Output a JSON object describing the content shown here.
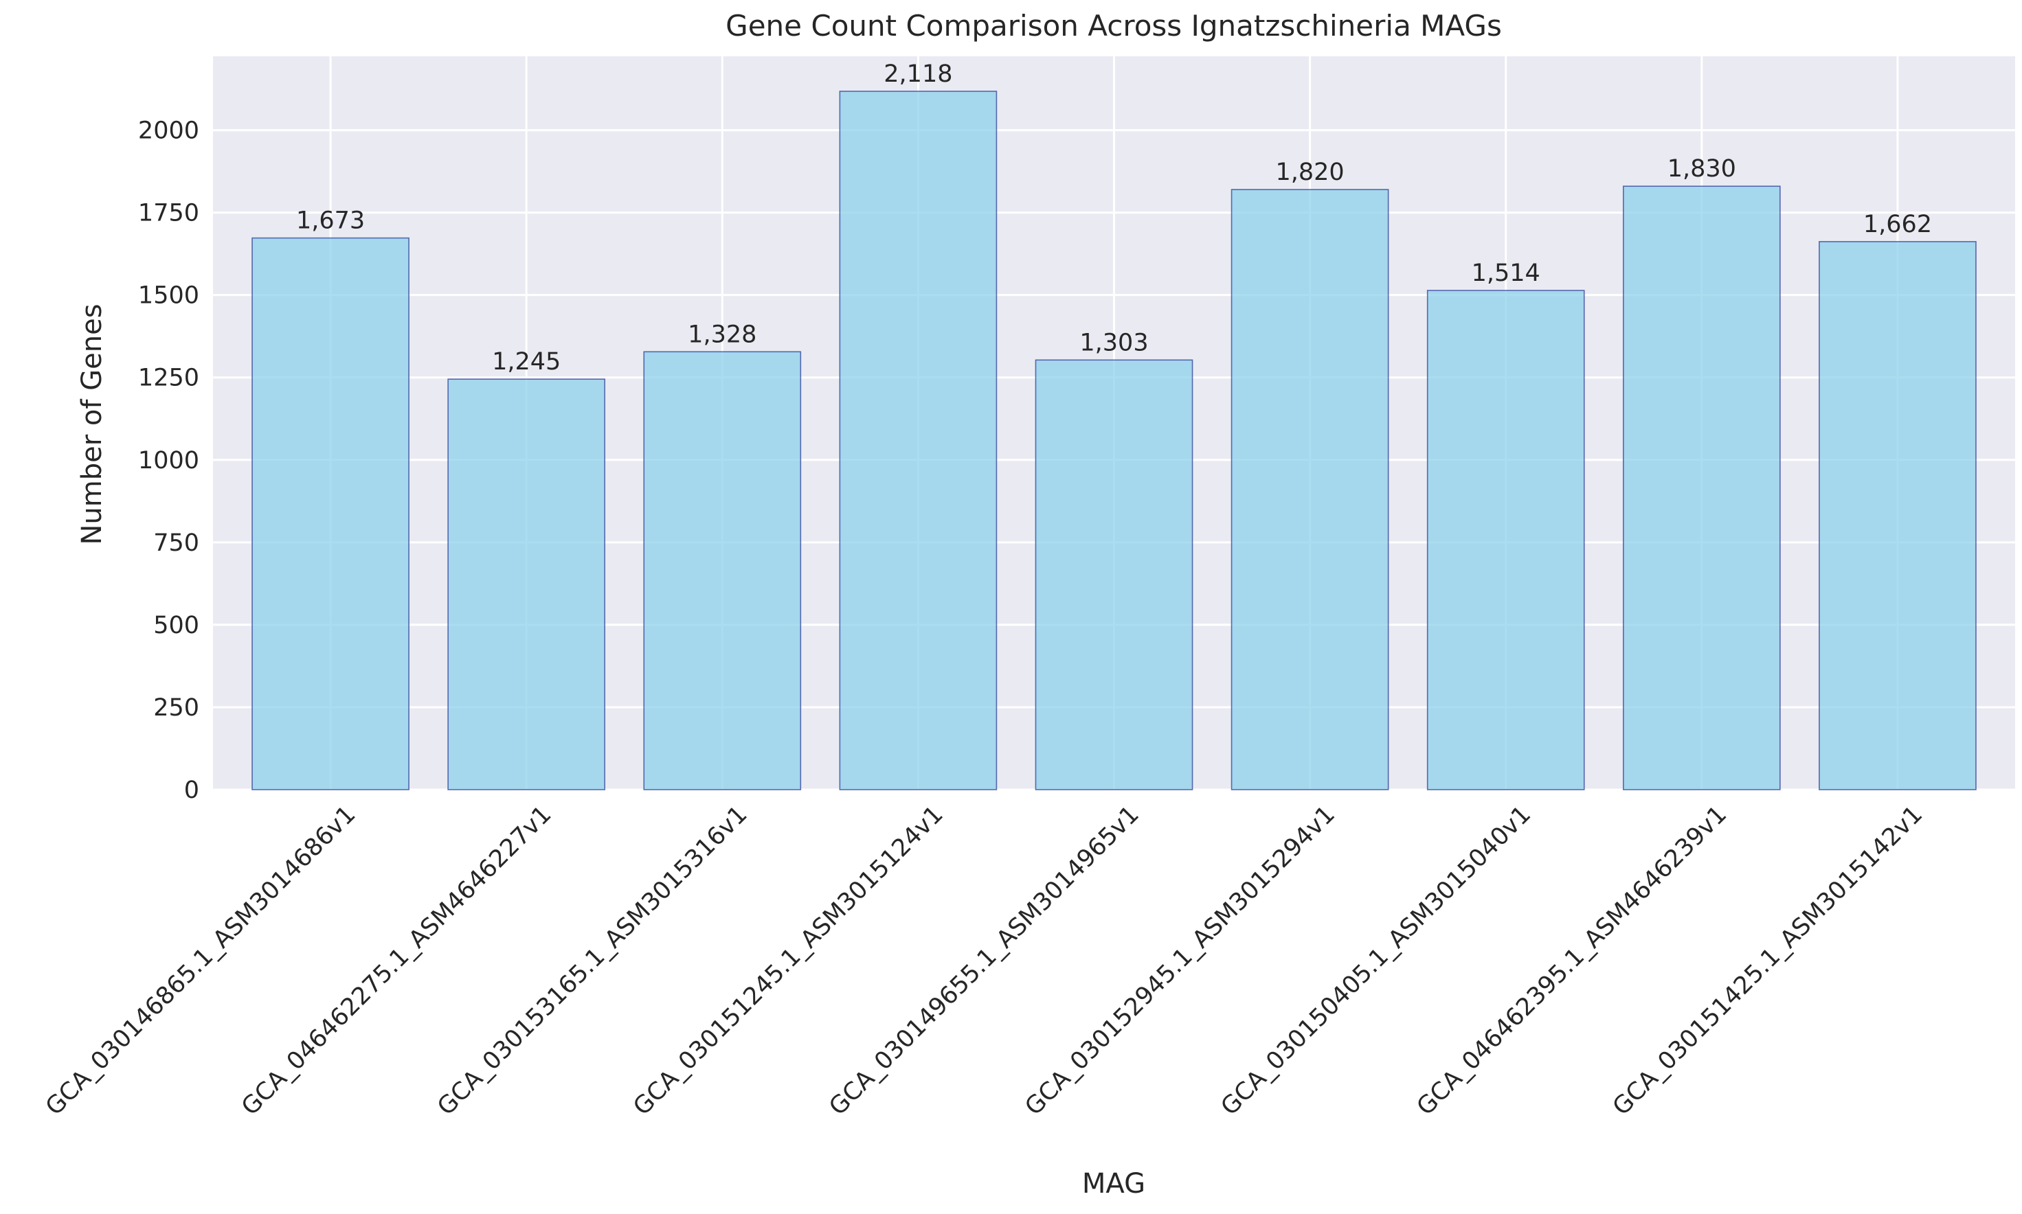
{
  "chart_data": {
    "type": "bar",
    "title": "Gene Count Comparison Across Ignatzschineria MAGs",
    "xlabel": "MAG",
    "ylabel": "Number of Genes",
    "categories": [
      "GCA_030146865.1_ASM3014686v1",
      "GCA_046462275.1_ASM4646227v1",
      "GCA_030153165.1_ASM3015316v1",
      "GCA_030151245.1_ASM3015124v1",
      "GCA_030149655.1_ASM3014965v1",
      "GCA_030152945.1_ASM3015294v1",
      "GCA_030150405.1_ASM3015040v1",
      "GCA_046462395.1_ASM4646239v1",
      "GCA_030151425.1_ASM3015142v1"
    ],
    "values": [
      1673,
      1245,
      1328,
      2118,
      1303,
      1820,
      1514,
      1830,
      1662
    ],
    "value_labels": [
      "1,673",
      "1,245",
      "1,328",
      "2,118",
      "1,303",
      "1,820",
      "1,514",
      "1,830",
      "1,662"
    ],
    "yticks": [
      0,
      250,
      500,
      750,
      1000,
      1250,
      1500,
      1750,
      2000
    ],
    "ylim": [
      0,
      2224
    ],
    "grid": true,
    "colors": {
      "bar_fill": "#87ceeb",
      "bar_edge": "#2e3f99",
      "plot_background": "#eaeaf2",
      "grid": "#ffffff",
      "text": "#262626"
    }
  }
}
